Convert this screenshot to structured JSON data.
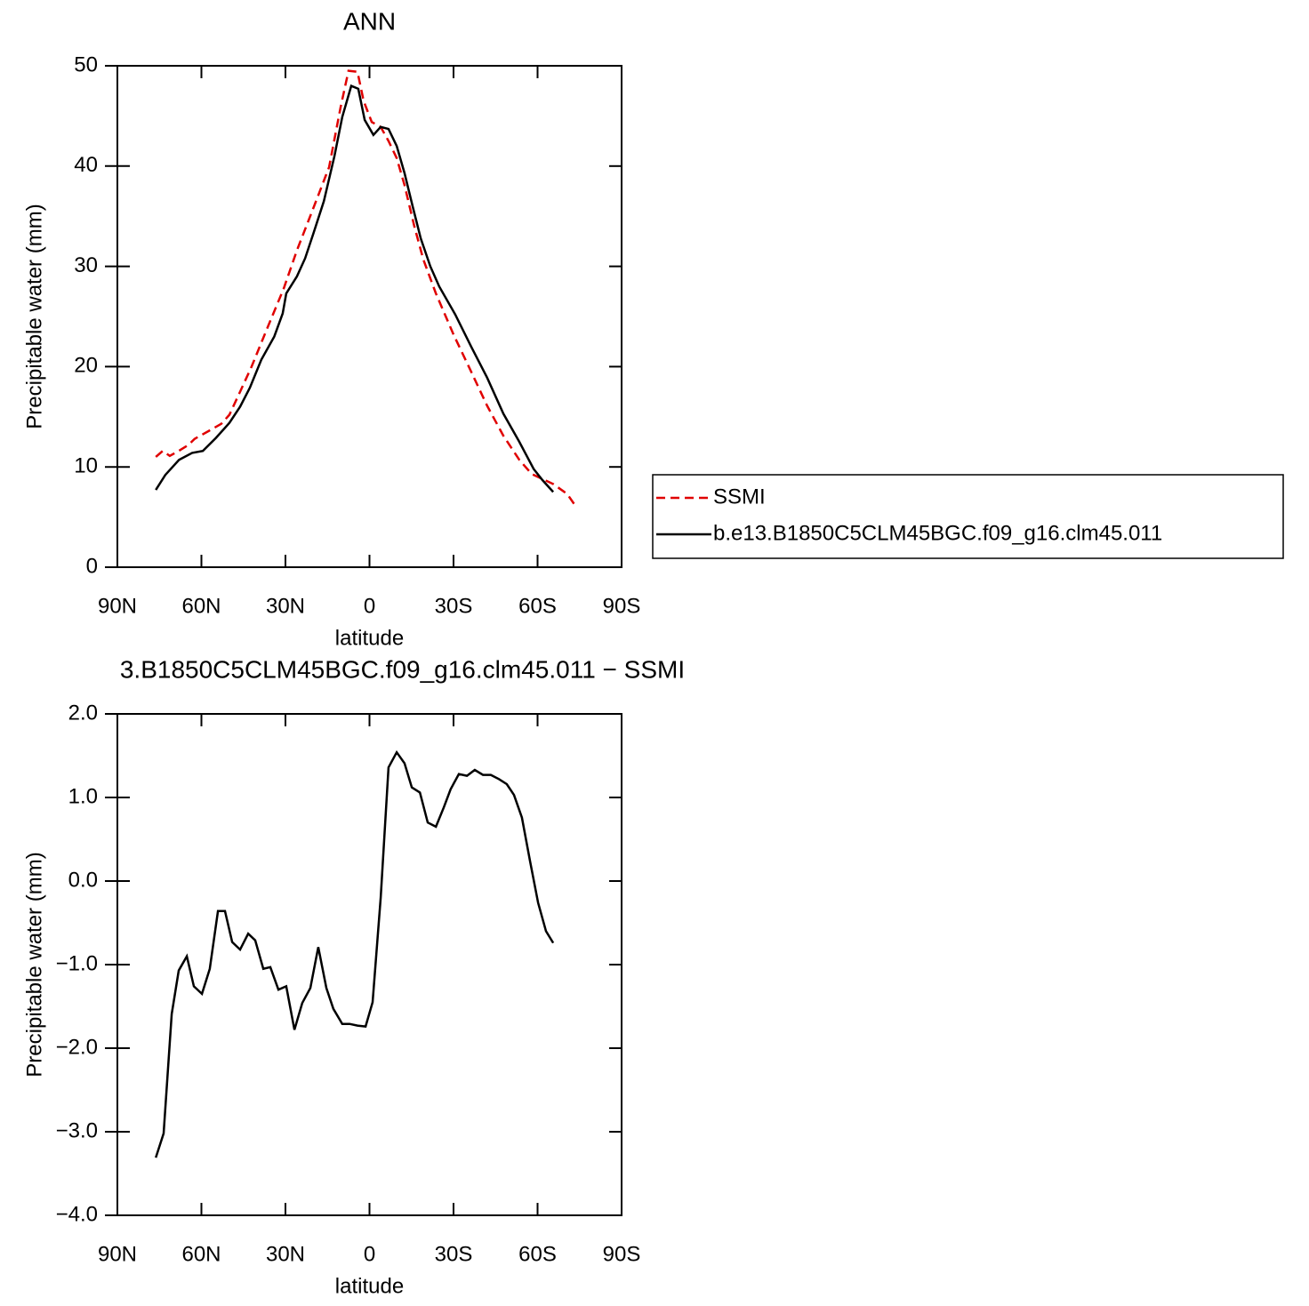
{
  "chart_data": [
    {
      "type": "line",
      "title": "ANN",
      "x_label": "latitude",
      "y_label": "Precipitable water (mm)",
      "xlim": [
        90,
        -90
      ],
      "xticks": [
        {
          "value": 90,
          "label": "90N"
        },
        {
          "value": 60,
          "label": "60N"
        },
        {
          "value": 30,
          "label": "30N"
        },
        0,
        {
          "value": -30,
          "label": "30S"
        },
        {
          "value": -60,
          "label": "60S"
        },
        {
          "value": -90,
          "label": "90S"
        }
      ],
      "ylim": [
        0,
        50
      ],
      "yticks": [
        0,
        10,
        20,
        30,
        40,
        50
      ],
      "legend": "outside-right",
      "series": [
        {
          "name": "SSMI",
          "color": "#e00000",
          "linestyle": "dashed",
          "x": [
            76.3,
            73.8,
            71.3,
            68.1,
            64.6,
            62.4,
            57.3,
            52.9,
            50,
            46.2,
            42.1,
            36.7,
            30.6,
            25.9,
            20.2,
            14.4,
            10.3,
            7.5,
            4.3,
            2.1,
            -0.8,
            -4,
            -6.8,
            -9.7,
            -12.5,
            -16,
            -19.2,
            -23.7,
            -30,
            -36.3,
            -42,
            -47.8,
            -53.5,
            -57.9,
            -65.6,
            -70.6,
            -73.8
          ],
          "values": [
            11,
            11.6,
            11.1,
            11.6,
            12.2,
            12.8,
            13.6,
            14.3,
            15.2,
            17.5,
            20,
            23.7,
            27.8,
            31.6,
            35.7,
            39.9,
            45.9,
            49.5,
            49.4,
            46.5,
            44.4,
            43.9,
            42.5,
            40.8,
            38.1,
            34,
            30.7,
            27.3,
            23.2,
            19.5,
            16.1,
            13.1,
            10.7,
            9.3,
            8.3,
            7.3,
            6
          ]
        },
        {
          "name": "b.e13.B1850C5CLM45BGC.f09_g16.clm45.011",
          "color": "#000000",
          "linestyle": "solid",
          "x": [
            76.3,
            72.9,
            68,
            63.3,
            59.5,
            54.8,
            50,
            46.2,
            42.7,
            38.6,
            34,
            31,
            29.7,
            25.9,
            23,
            20,
            16.3,
            12.5,
            9.7,
            6.5,
            4,
            1.7,
            -1.4,
            -4,
            -6.8,
            -9.7,
            -12.5,
            -15.4,
            -18.3,
            -21.7,
            -24.9,
            -30.6,
            -36.3,
            -42,
            -47.8,
            -53.5,
            -58.6,
            -61.7,
            -65.6
          ],
          "values": [
            7.7,
            9.2,
            10.7,
            11.4,
            11.6,
            12.9,
            14.4,
            16,
            17.9,
            20.7,
            23,
            25.3,
            27.3,
            29,
            30.8,
            33.3,
            36.5,
            41,
            44.9,
            48,
            47.7,
            44.6,
            43.1,
            43.9,
            43.7,
            42,
            39.3,
            36,
            32.8,
            30,
            28,
            25.2,
            22,
            18.9,
            15.3,
            12.5,
            9.8,
            8.7,
            7.5
          ]
        }
      ]
    },
    {
      "type": "line",
      "title": "3.B1850C5CLM45BGC.f09_g16.clm45.011 − SSMI",
      "x_label": "latitude",
      "y_label": "Precipitable water (mm)",
      "xlim": [
        90,
        -90
      ],
      "xticks": [
        {
          "value": 90,
          "label": "90N"
        },
        {
          "value": 60,
          "label": "60N"
        },
        {
          "value": 30,
          "label": "30N"
        },
        0,
        {
          "value": -30,
          "label": "30S"
        },
        {
          "value": -60,
          "label": "60S"
        },
        {
          "value": -90,
          "label": "90S"
        }
      ],
      "ylim": [
        -4,
        2
      ],
      "yticks": [
        {
          "value": 2,
          "label": "2.0"
        },
        {
          "value": 1,
          "label": "1.0"
        },
        {
          "value": 0,
          "label": "0.0"
        },
        {
          "value": -1,
          "label": "−1.0"
        },
        {
          "value": -2,
          "label": "−2.0"
        },
        {
          "value": -3,
          "label": "−3.0"
        },
        {
          "value": -4,
          "label": "−4.0"
        }
      ],
      "color": "#000000",
      "x": [
        76.3,
        73.5,
        70.6,
        68.1,
        65.2,
        62.7,
        59.8,
        57,
        54.1,
        51.6,
        49,
        46.2,
        43.3,
        40.8,
        37.9,
        35.4,
        32.5,
        29.7,
        26.8,
        24,
        21.1,
        18.3,
        15.4,
        12.9,
        9.7,
        7.1,
        4.3,
        1.4,
        -1.1,
        -4,
        -6.8,
        -9.7,
        -12.5,
        -15.1,
        -18,
        -20.8,
        -23.7,
        -26.5,
        -29,
        -31.9,
        -34.8,
        -37.6,
        -40.5,
        -43.3,
        -46.2,
        -49,
        -51.6,
        -54.4,
        -57.3,
        -60.2,
        -63,
        -65.6
      ],
      "values": [
        -3.31,
        -3.02,
        -1.59,
        -1.07,
        -0.9,
        -1.26,
        -1.35,
        -1.05,
        -0.36,
        -0.36,
        -0.73,
        -0.82,
        -0.63,
        -0.71,
        -1.05,
        -1.03,
        -1.3,
        -1.26,
        -1.78,
        -1.46,
        -1.28,
        -0.79,
        -1.28,
        -1.53,
        -1.71,
        -1.71,
        -1.73,
        -1.74,
        -1.45,
        -0.2,
        1.36,
        1.54,
        1.41,
        1.12,
        1.06,
        0.7,
        0.65,
        0.88,
        1.1,
        1.28,
        1.26,
        1.33,
        1.27,
        1.27,
        1.22,
        1.16,
        1.03,
        0.76,
        0.24,
        -0.26,
        -0.6,
        -0.74
      ]
    }
  ]
}
